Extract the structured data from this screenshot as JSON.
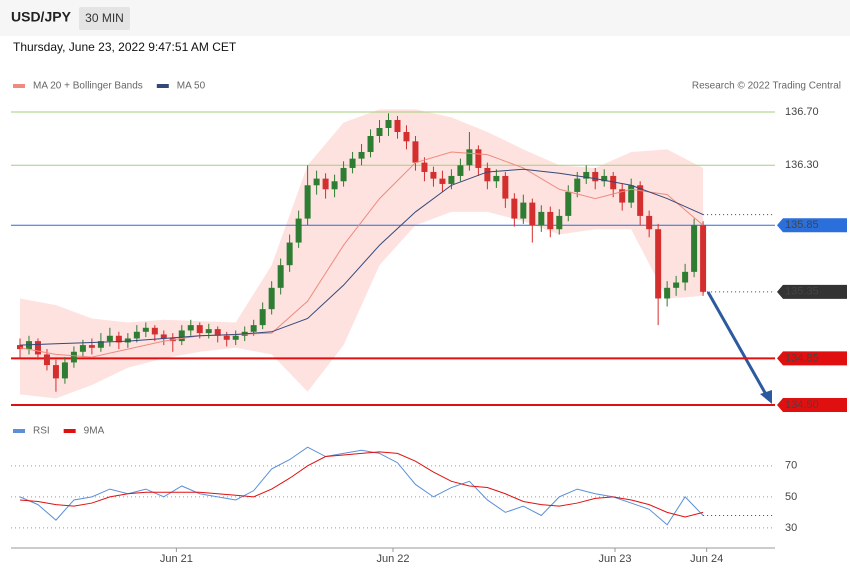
{
  "header": {
    "symbol": "USD/JPY",
    "timeframe": "30 MIN",
    "timestamp": "Thursday, June 23, 2022 9:47:51 AM CET",
    "copyright": "Research © 2022 Trading Central"
  },
  "chart_data": [
    {
      "type": "candlestick",
      "bull_color": "#2e7d32",
      "bear_color": "#d32f2f",
      "xlim": [
        -1,
        84
      ],
      "ylim": [
        134.45,
        136.8
      ],
      "x": [
        0,
        1,
        2,
        3,
        4,
        5,
        6,
        7,
        8,
        9,
        10,
        11,
        12,
        13,
        14,
        15,
        16,
        17,
        18,
        19,
        20,
        21,
        22,
        23,
        24,
        25,
        26,
        27,
        28,
        29,
        30,
        31,
        32,
        33,
        34,
        35,
        36,
        37,
        38,
        39,
        40,
        41,
        42,
        43,
        44,
        45,
        46,
        47,
        48,
        49,
        50,
        51,
        52,
        53,
        54,
        55,
        56,
        57,
        58,
        59,
        60,
        61,
        62,
        63,
        64,
        65,
        66,
        67,
        68,
        69,
        70,
        71,
        72,
        73,
        74,
        75,
        76
      ],
      "open": [
        134.95,
        134.92,
        134.98,
        134.88,
        134.8,
        134.7,
        134.82,
        134.9,
        134.95,
        134.93,
        134.98,
        135.02,
        134.97,
        135.0,
        135.05,
        135.08,
        135.03,
        135.0,
        134.98,
        135.06,
        135.1,
        135.04,
        135.07,
        135.02,
        134.99,
        135.02,
        135.05,
        135.1,
        135.22,
        135.38,
        135.55,
        135.72,
        135.9,
        136.15,
        136.2,
        136.12,
        136.18,
        136.28,
        136.35,
        136.4,
        136.52,
        136.58,
        136.64,
        136.55,
        136.48,
        136.32,
        136.25,
        136.2,
        136.16,
        136.22,
        136.3,
        136.42,
        136.28,
        136.18,
        136.22,
        136.05,
        135.9,
        136.02,
        135.85,
        135.95,
        135.82,
        135.92,
        136.1,
        136.2,
        136.25,
        136.18,
        136.22,
        136.12,
        136.02,
        136.15,
        135.92,
        135.82,
        135.3,
        135.38,
        135.42,
        135.5,
        135.85
      ],
      "high": [
        135.0,
        135.02,
        135.0,
        134.92,
        134.84,
        134.86,
        134.94,
        134.99,
        135.0,
        135.04,
        135.08,
        135.05,
        135.04,
        135.1,
        135.12,
        135.1,
        135.06,
        135.04,
        135.1,
        135.14,
        135.12,
        135.11,
        135.09,
        135.05,
        135.06,
        135.09,
        135.14,
        135.27,
        135.43,
        135.6,
        135.78,
        135.96,
        136.3,
        136.26,
        136.24,
        136.23,
        136.33,
        136.4,
        136.46,
        136.57,
        136.64,
        136.69,
        136.67,
        136.6,
        136.52,
        136.36,
        136.29,
        136.26,
        136.27,
        136.35,
        136.55,
        136.45,
        136.32,
        136.27,
        136.25,
        136.09,
        136.08,
        136.05,
        136.0,
        135.99,
        135.97,
        136.15,
        136.25,
        136.3,
        136.28,
        136.27,
        136.25,
        136.16,
        136.2,
        136.18,
        135.96,
        135.86,
        135.43,
        135.47,
        135.56,
        135.9,
        135.88
      ],
      "low": [
        134.85,
        134.88,
        134.84,
        134.76,
        134.6,
        134.66,
        134.78,
        134.86,
        134.88,
        134.9,
        134.94,
        134.92,
        134.93,
        134.97,
        135.01,
        134.98,
        134.95,
        134.9,
        134.95,
        135.02,
        135.0,
        135.0,
        134.97,
        134.94,
        134.95,
        134.98,
        135.02,
        135.07,
        135.18,
        135.33,
        135.5,
        135.68,
        135.85,
        136.08,
        136.05,
        136.06,
        136.14,
        136.24,
        136.3,
        136.36,
        136.47,
        136.52,
        136.5,
        136.42,
        136.26,
        136.18,
        136.14,
        136.1,
        136.12,
        136.18,
        136.26,
        136.22,
        136.12,
        136.13,
        135.98,
        135.84,
        135.86,
        135.72,
        135.8,
        135.76,
        135.78,
        135.88,
        136.06,
        136.16,
        136.12,
        136.14,
        136.06,
        135.96,
        135.98,
        135.85,
        135.76,
        135.1,
        135.24,
        135.32,
        135.36,
        135.46,
        135.32
      ],
      "close": [
        134.92,
        134.98,
        134.88,
        134.8,
        134.7,
        134.82,
        134.9,
        134.95,
        134.93,
        134.98,
        135.02,
        134.97,
        135.0,
        135.05,
        135.08,
        135.03,
        135.0,
        134.98,
        135.06,
        135.1,
        135.04,
        135.07,
        135.02,
        134.99,
        135.02,
        135.05,
        135.1,
        135.22,
        135.38,
        135.55,
        135.72,
        135.9,
        136.15,
        136.2,
        136.12,
        136.18,
        136.28,
        136.35,
        136.4,
        136.52,
        136.58,
        136.64,
        136.55,
        136.48,
        136.32,
        136.25,
        136.2,
        136.16,
        136.22,
        136.3,
        136.42,
        136.28,
        136.18,
        136.22,
        136.05,
        135.9,
        136.02,
        135.85,
        135.95,
        135.82,
        135.92,
        136.1,
        136.2,
        136.25,
        136.18,
        136.22,
        136.12,
        136.02,
        136.15,
        135.92,
        135.82,
        135.3,
        135.38,
        135.42,
        135.5,
        135.85,
        135.35
      ],
      "series": [
        {
          "name": "MA 20 + Bollinger Bands",
          "color": "#f08a80",
          "band_color": "#fde2df",
          "x": [
            0,
            4,
            8,
            12,
            16,
            20,
            24,
            28,
            32,
            36,
            40,
            44,
            48,
            52,
            56,
            60,
            64,
            68,
            72,
            76
          ],
          "values": [
            134.93,
            134.88,
            134.86,
            134.92,
            134.98,
            135.02,
            135.03,
            135.04,
            135.28,
            135.7,
            136.05,
            136.32,
            136.4,
            136.38,
            136.28,
            136.12,
            136.05,
            136.12,
            136.08,
            135.85
          ],
          "upper": [
            135.3,
            135.25,
            135.15,
            135.12,
            135.14,
            135.13,
            135.12,
            135.55,
            136.3,
            136.62,
            136.72,
            136.72,
            136.66,
            136.55,
            136.42,
            136.3,
            136.28,
            136.4,
            136.42,
            136.28
          ],
          "lower": [
            134.58,
            134.55,
            134.65,
            134.78,
            134.85,
            134.9,
            134.93,
            134.88,
            134.6,
            134.95,
            135.55,
            135.85,
            135.95,
            135.95,
            135.88,
            135.78,
            135.82,
            135.82,
            135.3,
            135.32
          ]
        },
        {
          "name": "MA 50",
          "color": "#34497a",
          "x": [
            0,
            4,
            8,
            12,
            16,
            20,
            24,
            28,
            32,
            36,
            40,
            44,
            48,
            52,
            56,
            60,
            64,
            68,
            72,
            76
          ],
          "values": [
            134.95,
            134.96,
            134.97,
            134.98,
            135.0,
            135.02,
            135.03,
            135.05,
            135.15,
            135.4,
            135.7,
            135.95,
            136.15,
            136.25,
            136.27,
            136.24,
            136.2,
            136.15,
            136.05,
            135.93
          ]
        }
      ],
      "levels": [
        {
          "value": 136.7,
          "label": "136.70",
          "color": "#a5cf7e",
          "text_color": "#5a9a2a",
          "style": "text"
        },
        {
          "value": 136.3,
          "label": "136.30",
          "color": "#a5cf7e",
          "text_color": "#5a9a2a",
          "style": "text"
        },
        {
          "value": 135.85,
          "label": "135.85",
          "color": "#2a6fdb",
          "text_color": "#ffffff",
          "style": "box"
        },
        {
          "value": 135.35,
          "label": "135.35",
          "color": "#333333",
          "text_color": "#ffffff",
          "style": "box",
          "line": "dotted"
        },
        {
          "value": 134.85,
          "label": "134.85",
          "color": "#e01010",
          "text_color": "#ffffff",
          "style": "box"
        },
        {
          "value": 134.5,
          "label": "134.50",
          "color": "#e01010",
          "text_color": "#ffffff",
          "style": "box"
        }
      ]
    },
    {
      "type": "line",
      "xlim": [
        -1,
        84
      ],
      "ylim": [
        20,
        86
      ],
      "yticks": [
        30,
        50,
        70
      ],
      "xticks": [
        {
          "value": 17.4,
          "label": "Jun 21"
        },
        {
          "value": 41.5,
          "label": "Jun 22"
        },
        {
          "value": 66.2,
          "label": "Jun 23"
        },
        {
          "value": 76.4,
          "label": "Jun 24"
        }
      ],
      "series": [
        {
          "name": "RSI",
          "color": "#5b8fd9",
          "x": [
            0,
            2,
            4,
            6,
            8,
            10,
            12,
            14,
            16,
            18,
            20,
            22,
            24,
            26,
            28,
            30,
            32,
            34,
            36,
            38,
            40,
            42,
            44,
            46,
            48,
            50,
            52,
            54,
            56,
            58,
            60,
            62,
            64,
            66,
            68,
            70,
            72,
            74,
            76
          ],
          "values": [
            50,
            45,
            35,
            48,
            50,
            55,
            52,
            55,
            50,
            57,
            52,
            50,
            48,
            54,
            68,
            74,
            82,
            76,
            78,
            80,
            78,
            72,
            58,
            50,
            56,
            60,
            48,
            40,
            44,
            38,
            50,
            55,
            52,
            50,
            46,
            42,
            32,
            50,
            38
          ]
        },
        {
          "name": "9MA",
          "color": "#e01010",
          "x": [
            0,
            2,
            4,
            6,
            8,
            10,
            12,
            14,
            16,
            18,
            20,
            22,
            24,
            26,
            28,
            30,
            32,
            34,
            36,
            38,
            40,
            42,
            44,
            46,
            48,
            50,
            52,
            54,
            56,
            58,
            60,
            62,
            64,
            66,
            68,
            70,
            72,
            74,
            76
          ],
          "values": [
            48,
            47,
            45,
            44,
            46,
            50,
            52,
            53,
            53,
            53,
            53,
            52,
            51,
            50,
            55,
            62,
            70,
            76,
            77,
            78,
            79,
            78,
            73,
            66,
            60,
            57,
            56,
            52,
            47,
            45,
            44,
            46,
            49,
            50,
            48,
            45,
            40,
            37,
            40
          ]
        }
      ]
    }
  ]
}
